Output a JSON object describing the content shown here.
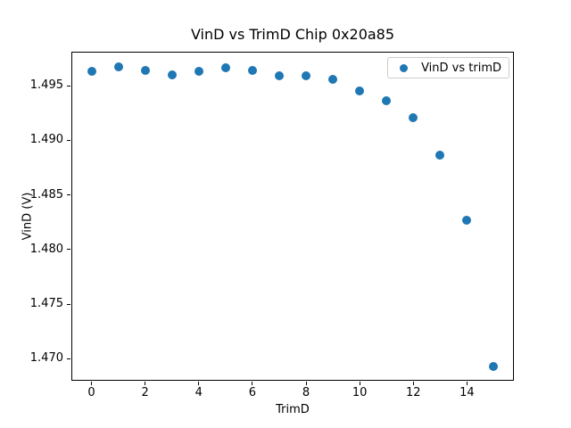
{
  "chart_data": {
    "type": "scatter",
    "title": "VinD vs TrimD Chip 0x20a85",
    "xlabel": "TrimD",
    "ylabel": "VinD (V)",
    "legend_label": "VinD vs trimD",
    "legend_position": "upper right",
    "grid": false,
    "marker_color": "#1f77b4",
    "x": [
      0,
      1,
      2,
      3,
      4,
      5,
      6,
      7,
      8,
      9,
      10,
      11,
      12,
      13,
      14,
      15
    ],
    "y": [
      1.4963,
      1.4967,
      1.4964,
      1.496,
      1.4963,
      1.4966,
      1.4964,
      1.4959,
      1.4959,
      1.4956,
      1.4945,
      1.4936,
      1.4921,
      1.4886,
      1.4827,
      1.4693
    ],
    "xlim": [
      -0.75,
      15.75
    ],
    "ylim": [
      1.468,
      1.4981
    ],
    "xticks": [
      0,
      2,
      4,
      6,
      8,
      10,
      12,
      14
    ],
    "ytick_labels": [
      "1.470",
      "1.475",
      "1.480",
      "1.485",
      "1.490",
      "1.495"
    ]
  }
}
